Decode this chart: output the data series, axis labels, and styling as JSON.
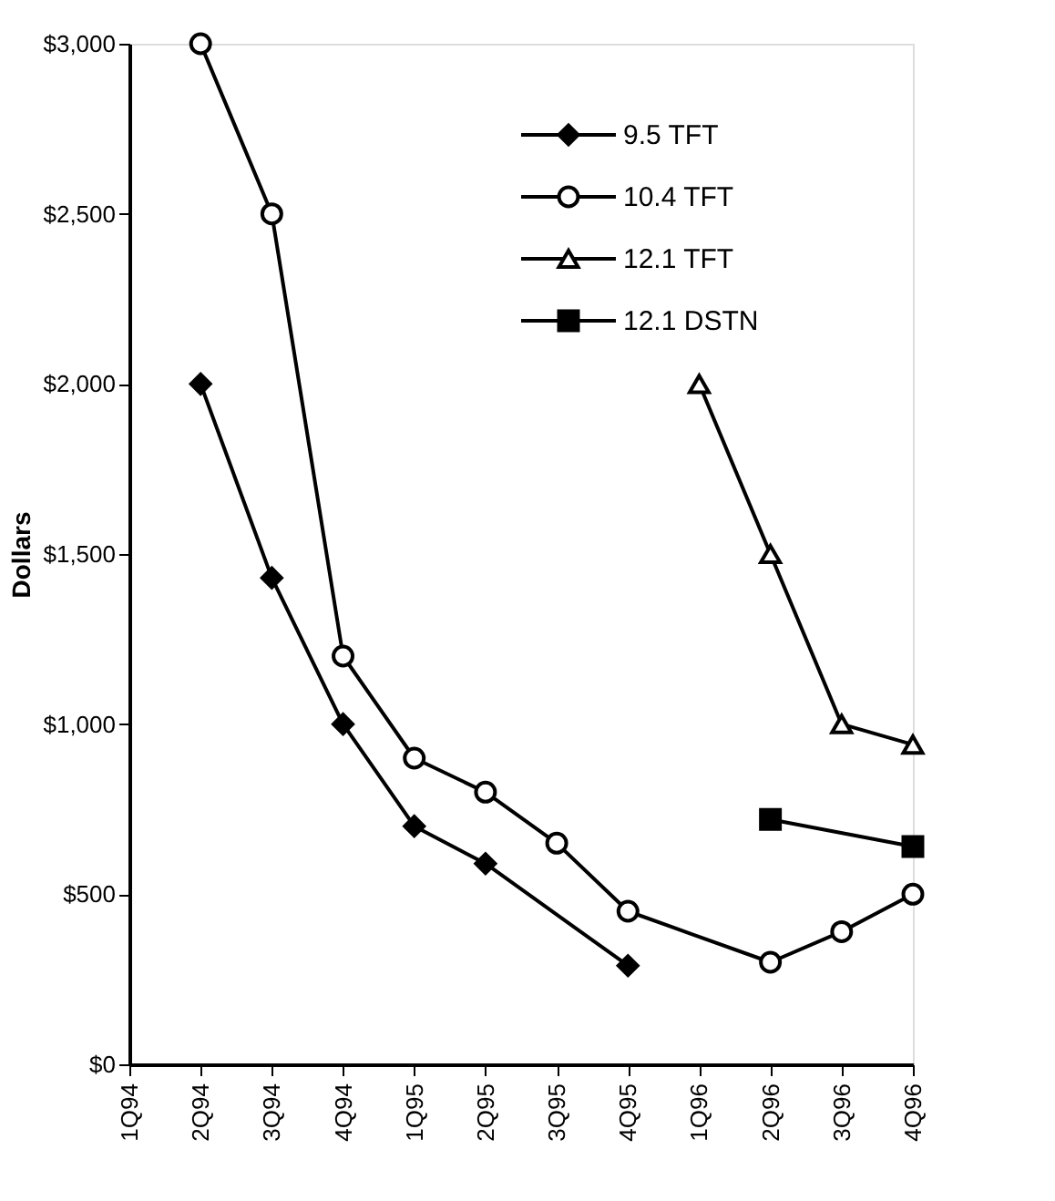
{
  "chart_data": {
    "type": "line",
    "ylabel": "Dollars",
    "categories": [
      "1Q94",
      "2Q94",
      "3Q94",
      "4Q94",
      "1Q95",
      "2Q95",
      "3Q95",
      "4Q95",
      "1Q96",
      "2Q96",
      "3Q96",
      "4Q96"
    ],
    "series": [
      {
        "name": "9.5 TFT",
        "color": "#000000",
        "marker": "diamond",
        "values": [
          null,
          2000,
          1430,
          1000,
          700,
          590,
          null,
          290,
          null,
          null,
          null,
          null
        ]
      },
      {
        "name": "10.4 TFT",
        "color": "#000000",
        "marker": "circle",
        "values": [
          null,
          3000,
          2500,
          1200,
          900,
          800,
          650,
          450,
          null,
          300,
          390,
          500
        ]
      },
      {
        "name": "12.1 TFT",
        "color": "#000000",
        "marker": "triangle",
        "values": [
          null,
          null,
          null,
          null,
          null,
          null,
          null,
          null,
          2000,
          1500,
          1000,
          940
        ]
      },
      {
        "name": "12.1 DSTN",
        "color": "#000000",
        "marker": "square",
        "values": [
          null,
          null,
          null,
          null,
          null,
          null,
          null,
          null,
          null,
          720,
          null,
          640
        ]
      }
    ],
    "ylim": [
      0,
      3000
    ],
    "yticks": [
      {
        "value": 0,
        "label": "$0"
      },
      {
        "value": 500,
        "label": "$500"
      },
      {
        "value": 1000,
        "label": "$1,000"
      },
      {
        "value": 1500,
        "label": "$1,500"
      },
      {
        "value": 2000,
        "label": "$2,000"
      },
      {
        "value": 2500,
        "label": "$2,500"
      },
      {
        "value": 3000,
        "label": "$3,000"
      }
    ],
    "grid": false,
    "legend": "top right"
  }
}
